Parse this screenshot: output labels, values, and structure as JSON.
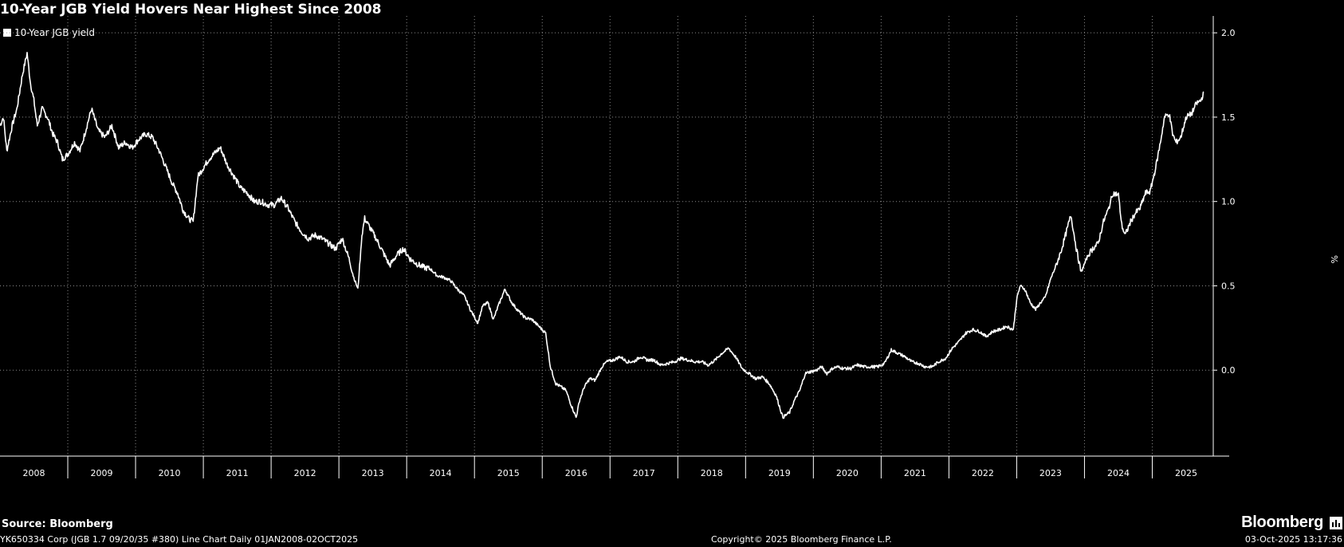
{
  "header": {
    "title": "10-Year JGB Yield Hovers Near Highest Since 2008"
  },
  "footer": {
    "source": "Source: Bloomberg",
    "brand": "Bloomberg",
    "security": "YK650334 Corp (JGB 1.7 09/20/35 #380) Line Chart Daily 01JAN2008-02OCT2025",
    "copyright": "Copyright© 2025 Bloomberg Finance L.P.",
    "timestamp": "03-Oct-2025 13:17:36"
  },
  "colors": {
    "background": "#000000",
    "line": "#ffffff",
    "grid": "#8a8a8a"
  },
  "chart_data": {
    "type": "line",
    "title": "10-Year JGB Yield Hovers Near Highest Since 2008",
    "ylabel": "%",
    "ylim": [
      -0.5,
      2.1
    ],
    "xlim": [
      2008.0,
      2025.9
    ],
    "yticks": [
      "2.0",
      "1.5",
      "1.0",
      "0.5",
      "0.0"
    ],
    "ytick_values": [
      2.0,
      1.5,
      1.0,
      0.5,
      0.0
    ],
    "xticks": [
      "2008",
      "2009",
      "2010",
      "2011",
      "2012",
      "2013",
      "2014",
      "2015",
      "2016",
      "2017",
      "2018",
      "2019",
      "2020",
      "2021",
      "2022",
      "2023",
      "2024",
      "2025"
    ],
    "grid": true,
    "legend_position": "top-left",
    "series": [
      {
        "name": "10-Year JGB yield",
        "x": [
          2008.0,
          2008.05,
          2008.1,
          2008.18,
          2008.25,
          2008.33,
          2008.4,
          2008.45,
          2008.5,
          2008.55,
          2008.62,
          2008.7,
          2008.78,
          2008.85,
          2008.92,
          2009.0,
          2009.1,
          2009.18,
          2009.25,
          2009.35,
          2009.45,
          2009.55,
          2009.65,
          2009.75,
          2009.85,
          2009.95,
          2010.05,
          2010.15,
          2010.25,
          2010.35,
          2010.45,
          2010.55,
          2010.62,
          2010.7,
          2010.78,
          2010.85,
          2010.92,
          2011.0,
          2011.08,
          2011.15,
          2011.25,
          2011.35,
          2011.45,
          2011.55,
          2011.65,
          2011.75,
          2011.85,
          2011.95,
          2012.05,
          2012.15,
          2012.25,
          2012.35,
          2012.45,
          2012.55,
          2012.65,
          2012.75,
          2012.85,
          2012.95,
          2013.05,
          2013.15,
          2013.22,
          2013.28,
          2013.34,
          2013.38,
          2013.45,
          2013.55,
          2013.65,
          2013.75,
          2013.85,
          2013.95,
          2014.05,
          2014.15,
          2014.25,
          2014.35,
          2014.45,
          2014.55,
          2014.65,
          2014.75,
          2014.85,
          2014.95,
          2015.05,
          2015.12,
          2015.2,
          2015.28,
          2015.35,
          2015.45,
          2015.55,
          2015.65,
          2015.75,
          2015.85,
          2015.95,
          2016.05,
          2016.12,
          2016.2,
          2016.28,
          2016.35,
          2016.42,
          2016.5,
          2016.55,
          2016.62,
          2016.7,
          2016.78,
          2016.88,
          2016.95,
          2017.05,
          2017.15,
          2017.25,
          2017.35,
          2017.45,
          2017.55,
          2017.65,
          2017.75,
          2017.85,
          2017.95,
          2018.05,
          2018.15,
          2018.25,
          2018.35,
          2018.45,
          2018.55,
          2018.65,
          2018.75,
          2018.85,
          2018.95,
          2019.05,
          2019.15,
          2019.25,
          2019.35,
          2019.45,
          2019.55,
          2019.65,
          2019.72,
          2019.8,
          2019.88,
          2019.95,
          2020.05,
          2020.12,
          2020.2,
          2020.28,
          2020.35,
          2020.45,
          2020.55,
          2020.65,
          2020.75,
          2020.85,
          2020.95,
          2021.05,
          2021.15,
          2021.25,
          2021.35,
          2021.45,
          2021.55,
          2021.65,
          2021.75,
          2021.85,
          2021.95,
          2022.05,
          2022.15,
          2022.25,
          2022.35,
          2022.45,
          2022.55,
          2022.65,
          2022.75,
          2022.85,
          2022.95,
          2023.0,
          2023.05,
          2023.12,
          2023.2,
          2023.28,
          2023.35,
          2023.42,
          2023.5,
          2023.58,
          2023.65,
          2023.72,
          2023.8,
          2023.88,
          2023.95,
          2024.05,
          2024.12,
          2024.2,
          2024.28,
          2024.35,
          2024.42,
          2024.5,
          2024.55,
          2024.6,
          2024.68,
          2024.75,
          2024.82,
          2024.9,
          2024.97,
          2025.05,
          2025.12,
          2025.18,
          2025.25,
          2025.3,
          2025.35,
          2025.42,
          2025.5,
          2025.58,
          2025.65,
          2025.72,
          2025.76
        ],
        "y": [
          1.45,
          1.5,
          1.3,
          1.45,
          1.55,
          1.75,
          1.88,
          1.7,
          1.6,
          1.45,
          1.55,
          1.5,
          1.4,
          1.35,
          1.25,
          1.28,
          1.35,
          1.3,
          1.4,
          1.55,
          1.42,
          1.38,
          1.45,
          1.32,
          1.35,
          1.32,
          1.37,
          1.4,
          1.38,
          1.3,
          1.2,
          1.1,
          1.05,
          0.95,
          0.9,
          0.88,
          1.15,
          1.2,
          1.25,
          1.28,
          1.32,
          1.22,
          1.15,
          1.08,
          1.05,
          1.0,
          1.0,
          0.98,
          0.98,
          1.02,
          0.96,
          0.88,
          0.82,
          0.78,
          0.8,
          0.78,
          0.75,
          0.72,
          0.78,
          0.66,
          0.55,
          0.48,
          0.8,
          0.9,
          0.85,
          0.78,
          0.7,
          0.62,
          0.68,
          0.72,
          0.66,
          0.63,
          0.61,
          0.6,
          0.56,
          0.55,
          0.53,
          0.48,
          0.44,
          0.35,
          0.28,
          0.38,
          0.4,
          0.3,
          0.38,
          0.48,
          0.4,
          0.35,
          0.31,
          0.3,
          0.26,
          0.22,
          0.02,
          -0.08,
          -0.1,
          -0.12,
          -0.2,
          -0.28,
          -0.18,
          -0.1,
          -0.05,
          -0.06,
          0.02,
          0.05,
          0.06,
          0.08,
          0.05,
          0.05,
          0.08,
          0.06,
          0.06,
          0.03,
          0.04,
          0.05,
          0.07,
          0.06,
          0.05,
          0.05,
          0.03,
          0.06,
          0.1,
          0.13,
          0.08,
          0.01,
          -0.02,
          -0.05,
          -0.04,
          -0.08,
          -0.15,
          -0.28,
          -0.25,
          -0.18,
          -0.12,
          -0.02,
          -0.01,
          0.0,
          0.02,
          -0.02,
          0.01,
          0.02,
          0.01,
          0.01,
          0.03,
          0.02,
          0.02,
          0.02,
          0.04,
          0.12,
          0.1,
          0.08,
          0.05,
          0.04,
          0.02,
          0.02,
          0.05,
          0.07,
          0.13,
          0.17,
          0.22,
          0.24,
          0.23,
          0.2,
          0.23,
          0.24,
          0.26,
          0.24,
          0.42,
          0.5,
          0.48,
          0.4,
          0.36,
          0.4,
          0.43,
          0.54,
          0.62,
          0.7,
          0.8,
          0.92,
          0.72,
          0.58,
          0.68,
          0.72,
          0.75,
          0.88,
          0.95,
          1.05,
          1.04,
          0.86,
          0.8,
          0.88,
          0.93,
          0.96,
          1.05,
          1.06,
          1.2,
          1.35,
          1.5,
          1.52,
          1.4,
          1.35,
          1.38,
          1.5,
          1.52,
          1.58,
          1.6,
          1.65
        ]
      }
    ]
  }
}
